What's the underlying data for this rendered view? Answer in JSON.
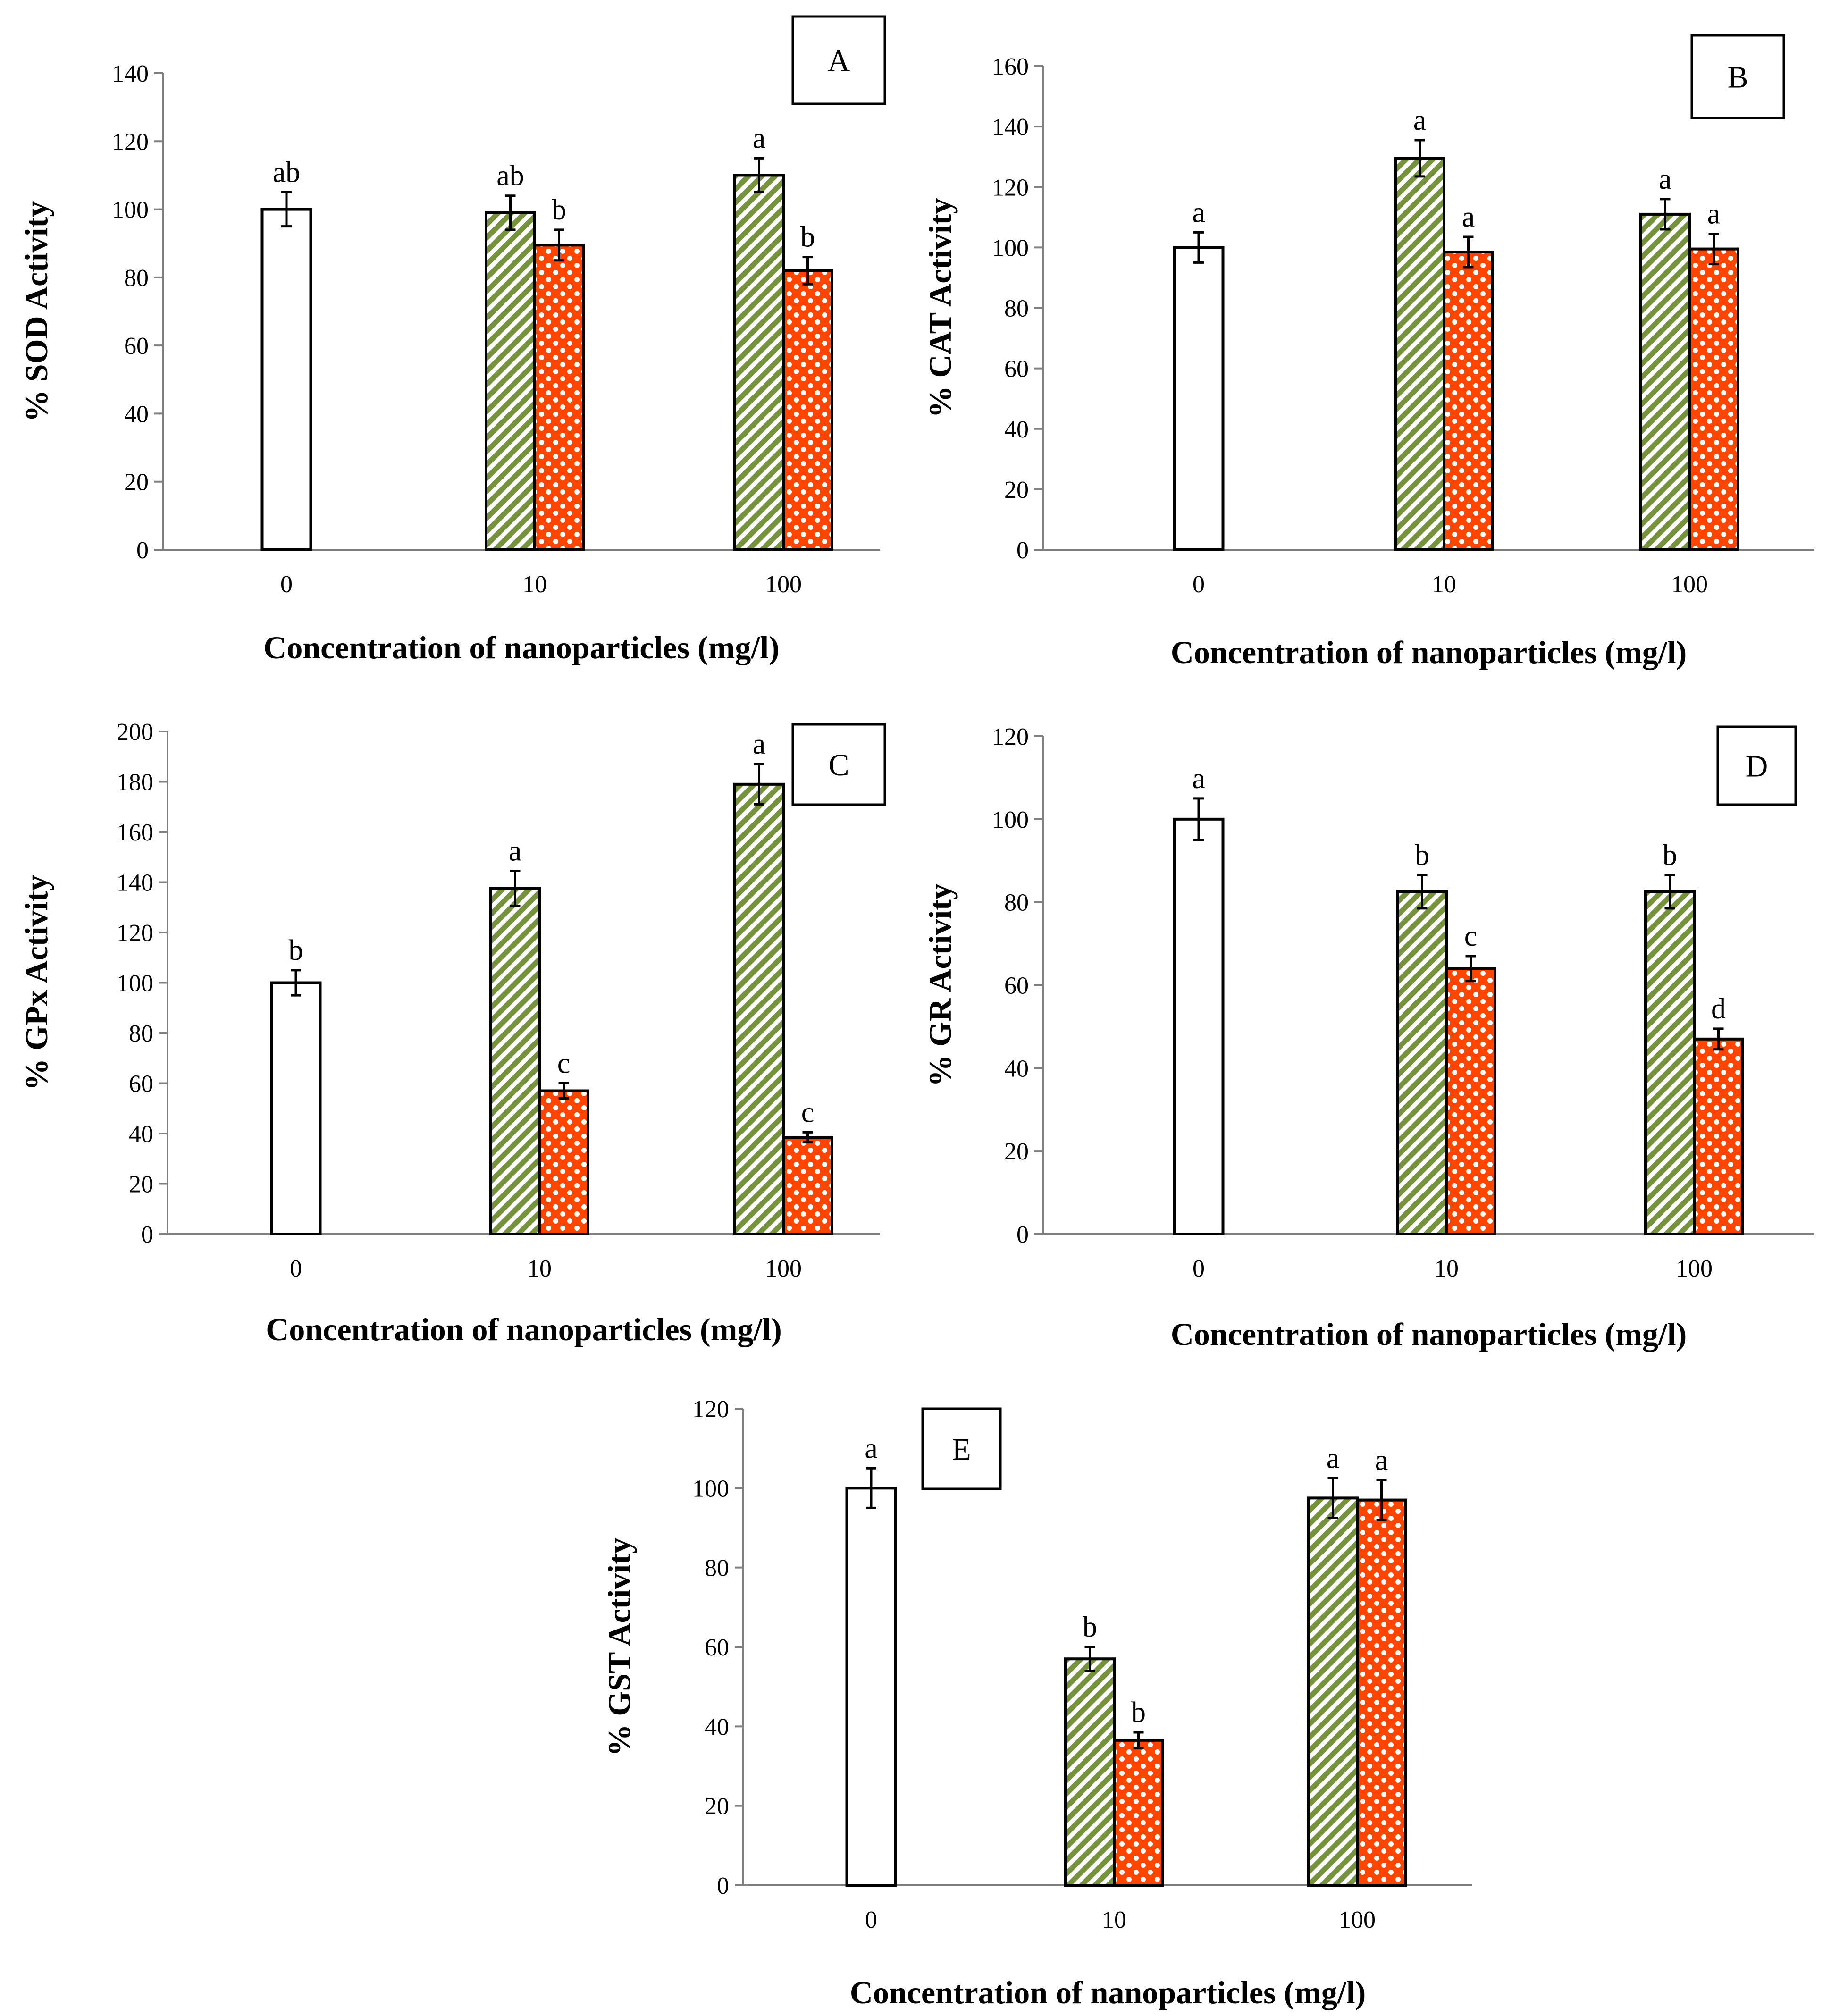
{
  "colors": {
    "control_fill": "#ffffff",
    "stripe_color": "#76923c",
    "dot_bg": "#ff4500",
    "dot_color": "#ffffff",
    "axis": "#808080",
    "bar_outline": "#000000"
  },
  "chart_data": [
    {
      "type": "bar",
      "panel": "A",
      "ylabel": "% SOD Activity",
      "xlabel": "Concentration of nanoparticles (mg/l)",
      "categories": [
        "0",
        "10",
        "100"
      ],
      "ylim": [
        0,
        140
      ],
      "yticks": [
        "0",
        "20",
        "40",
        "60",
        "80",
        "100",
        "120",
        "140"
      ],
      "series": [
        {
          "name": "control",
          "pattern": "plain",
          "values": [
            100,
            null,
            null
          ],
          "errors": [
            5,
            null,
            null
          ],
          "labels": [
            "ab",
            null,
            null
          ]
        },
        {
          "name": "striped",
          "pattern": "stripe",
          "values": [
            null,
            99,
            110
          ],
          "errors": [
            null,
            5,
            5
          ],
          "labels": [
            null,
            "ab",
            "a"
          ]
        },
        {
          "name": "dotted",
          "pattern": "dot",
          "values": [
            null,
            89.5,
            82
          ],
          "errors": [
            null,
            4.5,
            4
          ],
          "labels": [
            null,
            "b",
            "b"
          ]
        }
      ]
    },
    {
      "type": "bar",
      "panel": "B",
      "ylabel": "% CAT Activity",
      "xlabel": "Concentration of nanoparticles (mg/l)",
      "categories": [
        "0",
        "10",
        "100"
      ],
      "ylim": [
        0,
        160
      ],
      "yticks": [
        "0",
        "20",
        "40",
        "60",
        "80",
        "100",
        "120",
        "140",
        "160"
      ],
      "series": [
        {
          "name": "control",
          "pattern": "plain",
          "values": [
            100,
            null,
            null
          ],
          "errors": [
            5,
            null,
            null
          ],
          "labels": [
            "a",
            null,
            null
          ]
        },
        {
          "name": "striped",
          "pattern": "stripe",
          "values": [
            null,
            129.5,
            111
          ],
          "errors": [
            null,
            6,
            5
          ],
          "labels": [
            null,
            "a",
            "a"
          ]
        },
        {
          "name": "dotted",
          "pattern": "dot",
          "values": [
            null,
            98.5,
            99.5
          ],
          "errors": [
            null,
            5,
            5
          ],
          "labels": [
            null,
            "a",
            "a"
          ]
        }
      ]
    },
    {
      "type": "bar",
      "panel": "C",
      "ylabel": "% GPx Activity",
      "xlabel": "Concentration of nanoparticles (mg/l)",
      "categories": [
        "0",
        "10",
        "100"
      ],
      "ylim": [
        0,
        200
      ],
      "yticks": [
        "0",
        "20",
        "40",
        "60",
        "80",
        "100",
        "120",
        "140",
        "160",
        "180",
        "200"
      ],
      "series": [
        {
          "name": "control",
          "pattern": "plain",
          "values": [
            100,
            null,
            null
          ],
          "errors": [
            5,
            null,
            null
          ],
          "labels": [
            "b",
            null,
            null
          ]
        },
        {
          "name": "striped",
          "pattern": "stripe",
          "values": [
            null,
            137.5,
            179
          ],
          "errors": [
            null,
            7,
            8
          ],
          "labels": [
            null,
            "a",
            "a"
          ]
        },
        {
          "name": "dotted",
          "pattern": "dot",
          "values": [
            null,
            57,
            38.5
          ],
          "errors": [
            null,
            3,
            2
          ],
          "labels": [
            null,
            "c",
            "c"
          ]
        }
      ]
    },
    {
      "type": "bar",
      "panel": "D",
      "ylabel": "% GR Activity",
      "xlabel": "Concentration of nanoparticles (mg/l)",
      "categories": [
        "0",
        "10",
        "100"
      ],
      "ylim": [
        0,
        120
      ],
      "yticks": [
        "0",
        "20",
        "40",
        "60",
        "80",
        "100",
        "120"
      ],
      "series": [
        {
          "name": "control",
          "pattern": "plain",
          "values": [
            100,
            null,
            null
          ],
          "errors": [
            5,
            null,
            null
          ],
          "labels": [
            "a",
            null,
            null
          ]
        },
        {
          "name": "striped",
          "pattern": "stripe",
          "values": [
            null,
            82.5,
            82.5
          ],
          "errors": [
            null,
            4,
            4
          ],
          "labels": [
            null,
            "b",
            "b"
          ]
        },
        {
          "name": "dotted",
          "pattern": "dot",
          "values": [
            null,
            64,
            47
          ],
          "errors": [
            null,
            3,
            2.5
          ],
          "labels": [
            null,
            "c",
            "d"
          ]
        }
      ]
    },
    {
      "type": "bar",
      "panel": "E",
      "ylabel": "% GST Activity",
      "xlabel": "Concentration of nanoparticles (mg/l)",
      "categories": [
        "0",
        "10",
        "100"
      ],
      "ylim": [
        0,
        120
      ],
      "yticks": [
        "0",
        "20",
        "40",
        "60",
        "80",
        "100",
        "120"
      ],
      "series": [
        {
          "name": "control",
          "pattern": "plain",
          "values": [
            100,
            null,
            null
          ],
          "errors": [
            5,
            null,
            null
          ],
          "labels": [
            "a",
            null,
            null
          ]
        },
        {
          "name": "striped",
          "pattern": "stripe",
          "values": [
            null,
            57,
            97.5
          ],
          "errors": [
            null,
            3,
            5
          ],
          "labels": [
            null,
            "b",
            "a"
          ]
        },
        {
          "name": "dotted",
          "pattern": "dot",
          "values": [
            null,
            36.5,
            97
          ],
          "errors": [
            null,
            2,
            5
          ],
          "labels": [
            null,
            "b",
            "a"
          ]
        }
      ]
    }
  ]
}
